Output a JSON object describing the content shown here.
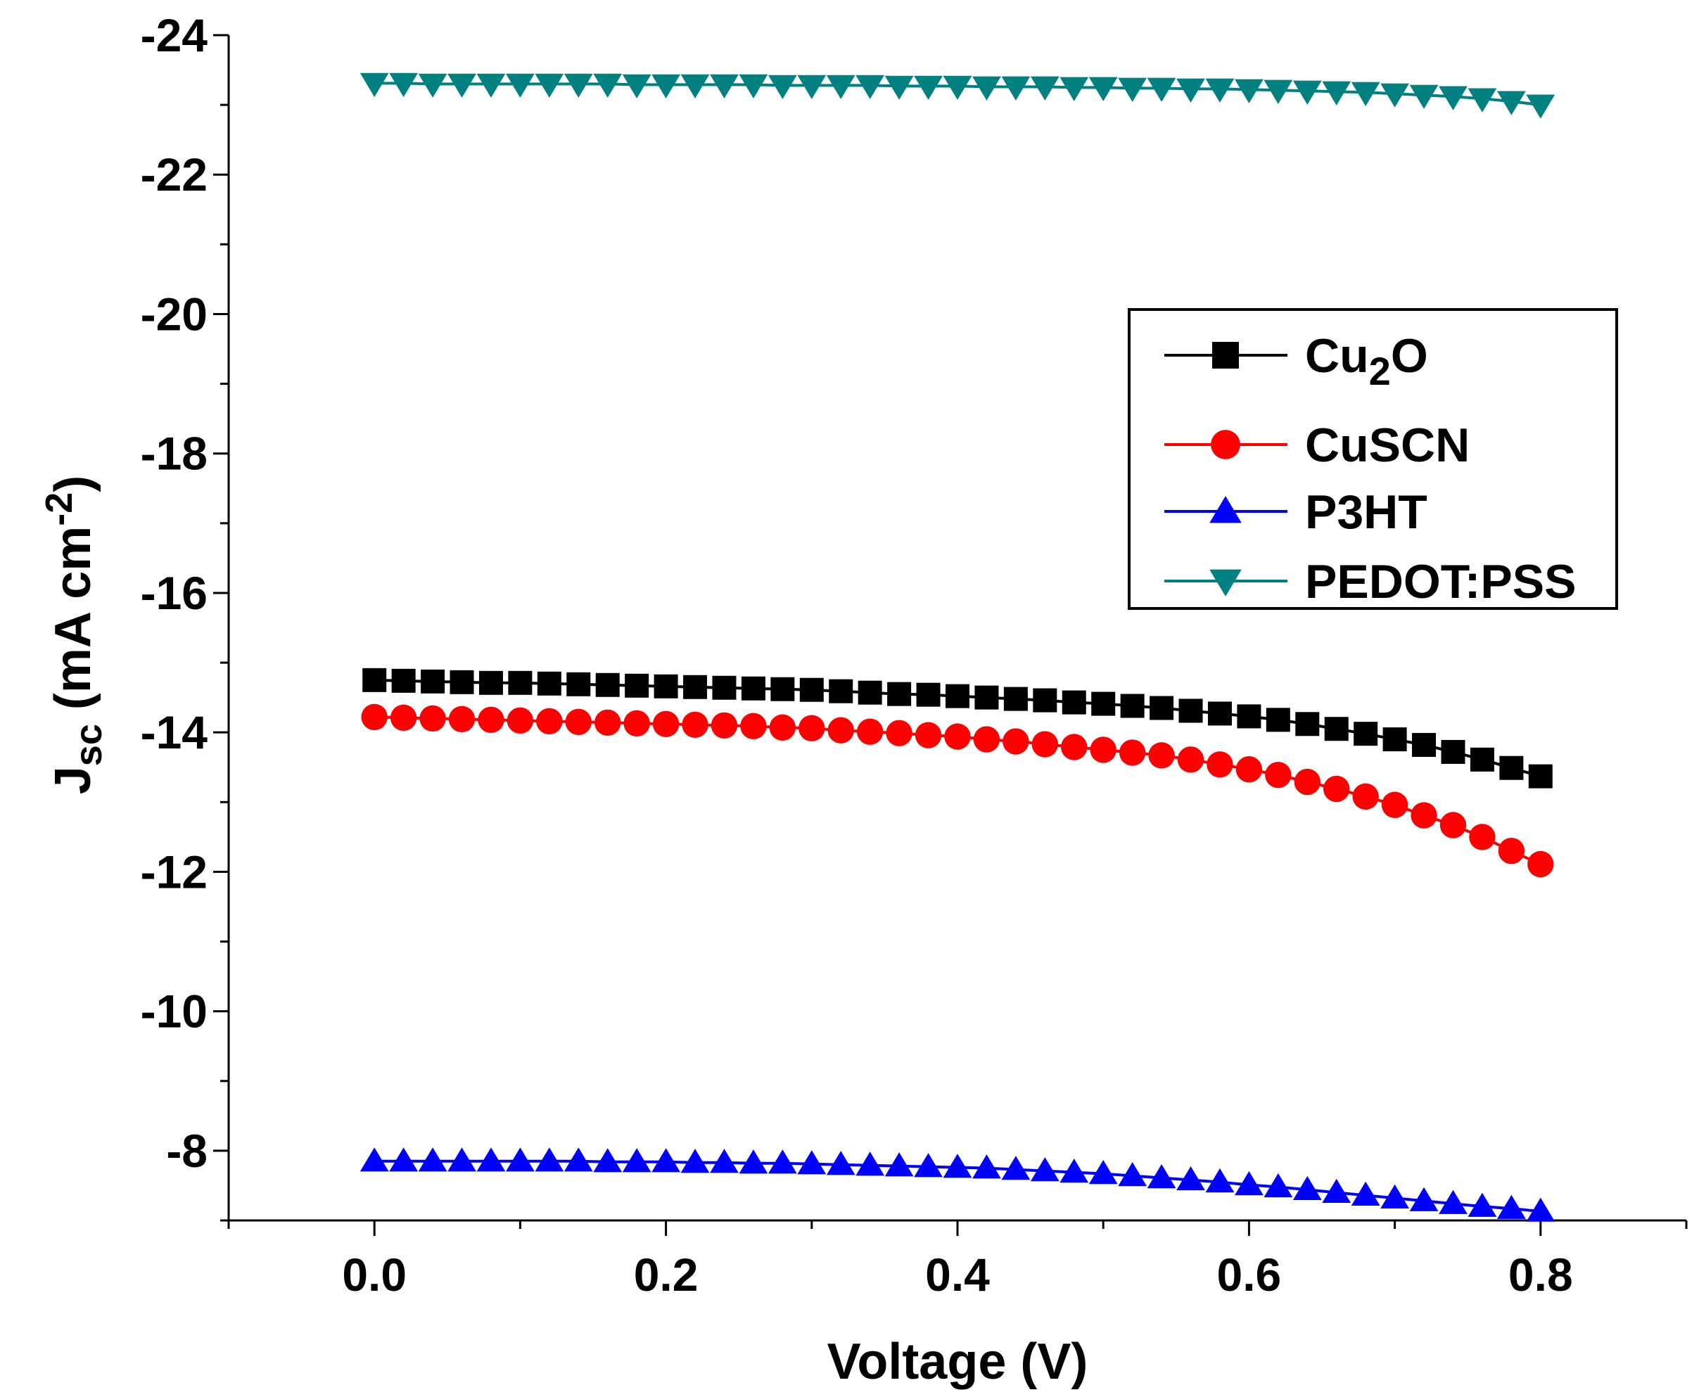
{
  "chart_data": {
    "type": "line",
    "title": "",
    "xlabel": "Voltage (V)",
    "ylabel": {
      "main": "J",
      "sub": "sc",
      "mid": " (mA cm",
      "sup": "-2",
      "end": ")"
    },
    "xlim": [
      -0.1,
      0.9
    ],
    "ylim": [
      -7,
      -24
    ],
    "x_ticks": [
      "0.0",
      "0.2",
      "0.4",
      "0.6",
      "0.8"
    ],
    "x_tick_values": [
      0,
      0.2,
      0.4,
      0.6,
      0.8
    ],
    "y_ticks": [
      "-24",
      "-22",
      "-20",
      "-18",
      "-16",
      "-14",
      "-12",
      "-10",
      "-8"
    ],
    "y_tick_values": [
      -24,
      -22,
      -20,
      -18,
      -16,
      -14,
      -12,
      -10,
      -8
    ],
    "grid": false,
    "legend_position": "right",
    "x": [
      0,
      0.02,
      0.04,
      0.06,
      0.08,
      0.1,
      0.12,
      0.14,
      0.16,
      0.18,
      0.2,
      0.22,
      0.24,
      0.26,
      0.28,
      0.3,
      0.32,
      0.34,
      0.36,
      0.38,
      0.4,
      0.42,
      0.44,
      0.46,
      0.48,
      0.5,
      0.52,
      0.54,
      0.56,
      0.58,
      0.6,
      0.62,
      0.64,
      0.66,
      0.68,
      0.7,
      0.72,
      0.74,
      0.76,
      0.78,
      0.8
    ],
    "series": [
      {
        "name": "Cu2O",
        "legend": {
          "base": "Cu",
          "sub": "2",
          "end": "O"
        },
        "marker": "square",
        "color": "#000000",
        "values": [
          -14.75,
          -14.74,
          -14.73,
          -14.72,
          -14.71,
          -14.71,
          -14.7,
          -14.69,
          -14.68,
          -14.67,
          -14.66,
          -14.65,
          -14.64,
          -14.63,
          -14.62,
          -14.61,
          -14.59,
          -14.57,
          -14.55,
          -14.54,
          -14.52,
          -14.5,
          -14.48,
          -14.46,
          -14.43,
          -14.41,
          -14.38,
          -14.35,
          -14.31,
          -14.27,
          -14.23,
          -14.18,
          -14.12,
          -14.05,
          -13.98,
          -13.9,
          -13.82,
          -13.72,
          -13.61,
          -13.49,
          -13.37
        ]
      },
      {
        "name": "CuSCN",
        "legend": {
          "base": "CuSCN",
          "sub": "",
          "end": ""
        },
        "marker": "circle",
        "color": "#ff0000",
        "values": [
          -14.22,
          -14.21,
          -14.2,
          -14.19,
          -14.18,
          -14.17,
          -14.16,
          -14.15,
          -14.14,
          -14.13,
          -14.12,
          -14.11,
          -14.1,
          -14.09,
          -14.07,
          -14.06,
          -14.03,
          -14.01,
          -13.99,
          -13.96,
          -13.94,
          -13.9,
          -13.87,
          -13.83,
          -13.79,
          -13.75,
          -13.71,
          -13.67,
          -13.61,
          -13.54,
          -13.47,
          -13.39,
          -13.29,
          -13.19,
          -13.08,
          -12.96,
          -12.81,
          -12.67,
          -12.5,
          -12.3,
          -12.11
        ]
      },
      {
        "name": "P3HT",
        "legend": {
          "base": "P3HT",
          "sub": "",
          "end": ""
        },
        "marker": "triangle-up",
        "color": "#0000ff",
        "values": [
          -7.85,
          -7.85,
          -7.85,
          -7.85,
          -7.85,
          -7.85,
          -7.85,
          -7.85,
          -7.84,
          -7.84,
          -7.84,
          -7.83,
          -7.83,
          -7.82,
          -7.82,
          -7.81,
          -7.8,
          -7.79,
          -7.78,
          -7.77,
          -7.76,
          -7.75,
          -7.73,
          -7.71,
          -7.69,
          -7.67,
          -7.64,
          -7.61,
          -7.58,
          -7.55,
          -7.51,
          -7.48,
          -7.44,
          -7.4,
          -7.36,
          -7.32,
          -7.28,
          -7.24,
          -7.2,
          -7.17,
          -7.13
        ]
      },
      {
        "name": "PEDOT:PSS",
        "legend": {
          "base": "PEDOT:PSS",
          "sub": "",
          "end": ""
        },
        "marker": "triangle-down",
        "color": "#008080",
        "values": [
          -23.31,
          -23.31,
          -23.3,
          -23.3,
          -23.3,
          -23.3,
          -23.3,
          -23.3,
          -23.3,
          -23.29,
          -23.29,
          -23.29,
          -23.29,
          -23.29,
          -23.28,
          -23.28,
          -23.28,
          -23.28,
          -23.27,
          -23.27,
          -23.27,
          -23.26,
          -23.26,
          -23.26,
          -23.25,
          -23.25,
          -23.24,
          -23.24,
          -23.23,
          -23.23,
          -23.22,
          -23.21,
          -23.2,
          -23.19,
          -23.18,
          -23.16,
          -23.14,
          -23.12,
          -23.09,
          -23.05,
          -23.0
        ]
      }
    ]
  }
}
